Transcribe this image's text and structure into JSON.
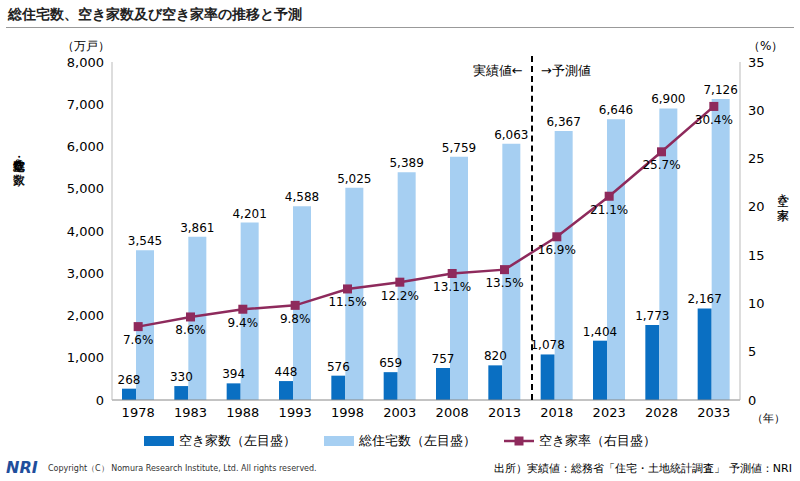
{
  "chart_data": {
    "type": "bar",
    "title": "総住宅数、空き家数及び空き家率の推移と予測",
    "categories": [
      "1978",
      "1983",
      "1988",
      "1993",
      "1998",
      "2003",
      "2008",
      "2013",
      "2018",
      "2023",
      "2028",
      "2033"
    ],
    "series": [
      {
        "name": "空き家数（左目盛）",
        "color": "#0a6fc2",
        "values": [
          268,
          330,
          394,
          448,
          576,
          659,
          757,
          820,
          1078,
          1404,
          1773,
          2167
        ],
        "value_labels": [
          "268",
          "330",
          "394",
          "448",
          "576",
          "659",
          "757",
          "820",
          "1,078",
          "1,404",
          "1,773",
          "2,167"
        ]
      },
      {
        "name": "総住宅数（左目盛）",
        "color": "#a6cff2",
        "values": [
          3545,
          3861,
          4201,
          4588,
          5025,
          5389,
          5759,
          6063,
          6367,
          6646,
          6900,
          7126
        ],
        "value_labels": [
          "3,545",
          "3,861",
          "4,201",
          "4,588",
          "5,025",
          "5,389",
          "5,759",
          "6,063",
          "6,367",
          "6,646",
          "6,900",
          "7,126"
        ]
      },
      {
        "name": "空き家率（右目盛）",
        "type": "line",
        "axis": "y2",
        "color": "#8e2a5c",
        "marker": "square",
        "line_style": "solid",
        "values": [
          7.6,
          8.6,
          9.4,
          9.8,
          11.5,
          12.2,
          13.1,
          13.5,
          16.9,
          21.1,
          25.7,
          30.4
        ],
        "value_labels": [
          "7.6%",
          "8.6%",
          "9.4%",
          "9.8%",
          "11.5%",
          "12.2%",
          "13.1%",
          "13.5%",
          "16.9%",
          "21.1%",
          "25.7%",
          "30.4%"
        ]
      }
    ],
    "ylim": [
      0,
      8000
    ],
    "yticks": [
      0,
      {
        "value": 1000,
        "label": "1,000"
      },
      {
        "value": 2000,
        "label": "2,000"
      },
      {
        "value": 3000,
        "label": "3,000"
      },
      {
        "value": 4000,
        "label": "4,000"
      },
      {
        "value": 5000,
        "label": "5,000"
      },
      {
        "value": 6000,
        "label": "6,000"
      },
      {
        "value": 7000,
        "label": "7,000"
      },
      {
        "value": 8000,
        "label": "8,000"
      }
    ],
    "y2lim": [
      0,
      35
    ],
    "y2ticks": [
      0,
      5,
      10,
      15,
      20,
      25,
      30,
      35
    ],
    "y_label": "総住宅数・空き家数",
    "y_unit": "（万戸）",
    "y2_label": "空き家率",
    "y2_unit": "（%）",
    "x_unit": "（年）",
    "annotations": [
      "実績値←",
      "→予測値"
    ],
    "forecast_start": "2018",
    "grid": false,
    "data_labels": true,
    "legend": "bottom",
    "logo": "NRI",
    "copyright": "Copyright（C） Nomura Research Institute, Ltd. All rights reserved.",
    "source": "出所）実績値：総務省「住宅・土地統計調査」 予測値：NRI"
  }
}
